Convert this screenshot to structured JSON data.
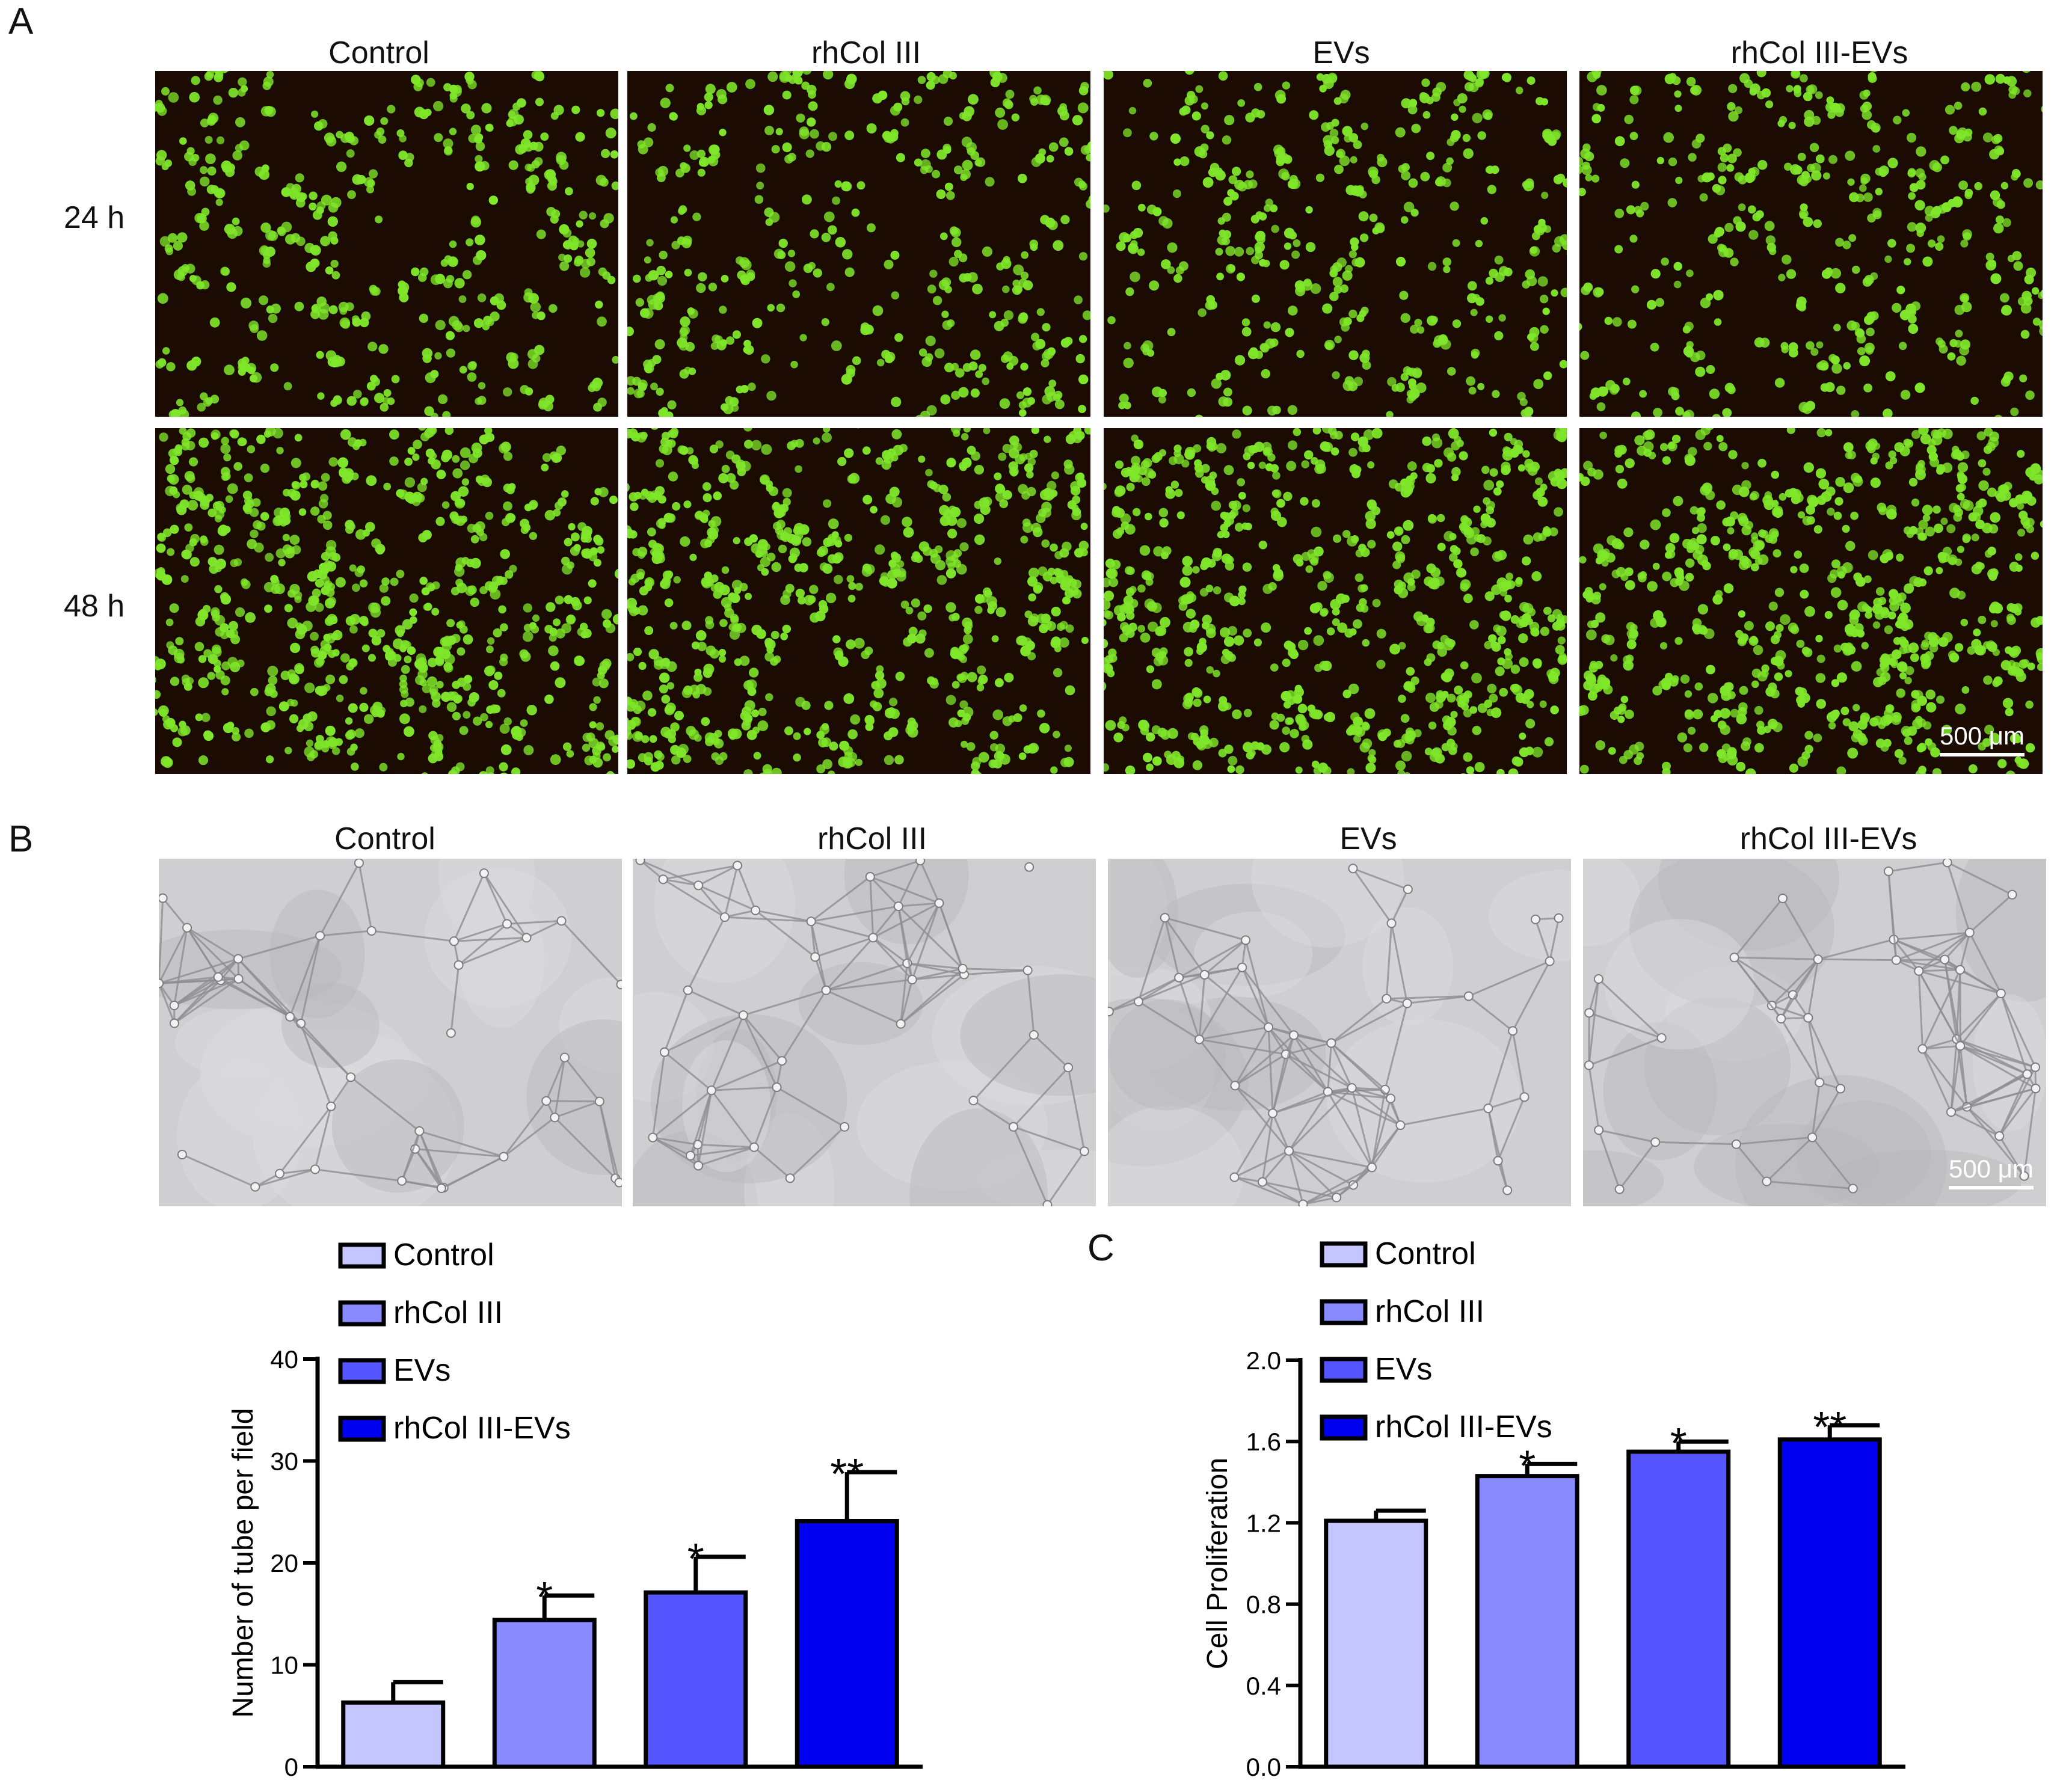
{
  "panels": {
    "a": {
      "label": "A",
      "columns": [
        "Control",
        "rhCol III",
        "EVs",
        "rhCol III-EVs"
      ],
      "rows": [
        "24 h",
        "48 h"
      ],
      "scale_bar": "500 μm"
    },
    "b": {
      "label": "B",
      "columns": [
        "Control",
        "rhCol III",
        "EVs",
        "rhCol III-EVs"
      ],
      "scale_bar": "500 μm"
    },
    "c": {
      "label": "C"
    }
  },
  "colors": {
    "control": "#c5c5ff",
    "rhcol": "#8a8aff",
    "evs": "#5555ff",
    "rhcol_evs": "#0000ee",
    "fluor_bg": "#1c0b02",
    "fluor_cell": "#7fe62a",
    "bright_bg": "#cfcfd1"
  },
  "chart_data": [
    {
      "type": "bar",
      "categories": [
        "Control",
        "rhCol III",
        "EVs",
        "rhCol III-EVs"
      ],
      "values": [
        6.3,
        14.4,
        17.1,
        24.1
      ],
      "errors": [
        2.0,
        2.4,
        3.5,
        4.8
      ],
      "significance": [
        "",
        "*",
        "*",
        "**"
      ],
      "ylabel": "Number of tube per field",
      "ylim": [
        0,
        40
      ],
      "yticks": [
        "0",
        "10",
        "20",
        "30",
        "40"
      ],
      "legend": [
        "Control",
        "rhCol III",
        "EVs",
        "rhCol III-EVs"
      ],
      "legend_position": "top-left"
    },
    {
      "type": "bar",
      "categories": [
        "Control",
        "rhCol III",
        "EVs",
        "rhCol III-EVs"
      ],
      "values": [
        1.21,
        1.43,
        1.55,
        1.61
      ],
      "errors": [
        0.05,
        0.06,
        0.05,
        0.07
      ],
      "significance": [
        "",
        "*",
        "*",
        "**"
      ],
      "ylabel": "Cell Proliferation",
      "ylim": [
        0,
        2.0
      ],
      "yticks": [
        "0.0",
        "0.4",
        "0.8",
        "1.2",
        "1.6",
        "2.0"
      ],
      "legend": [
        "Control",
        "rhCol III",
        "EVs",
        "rhCol III-EVs"
      ],
      "legend_position": "top-left"
    }
  ]
}
